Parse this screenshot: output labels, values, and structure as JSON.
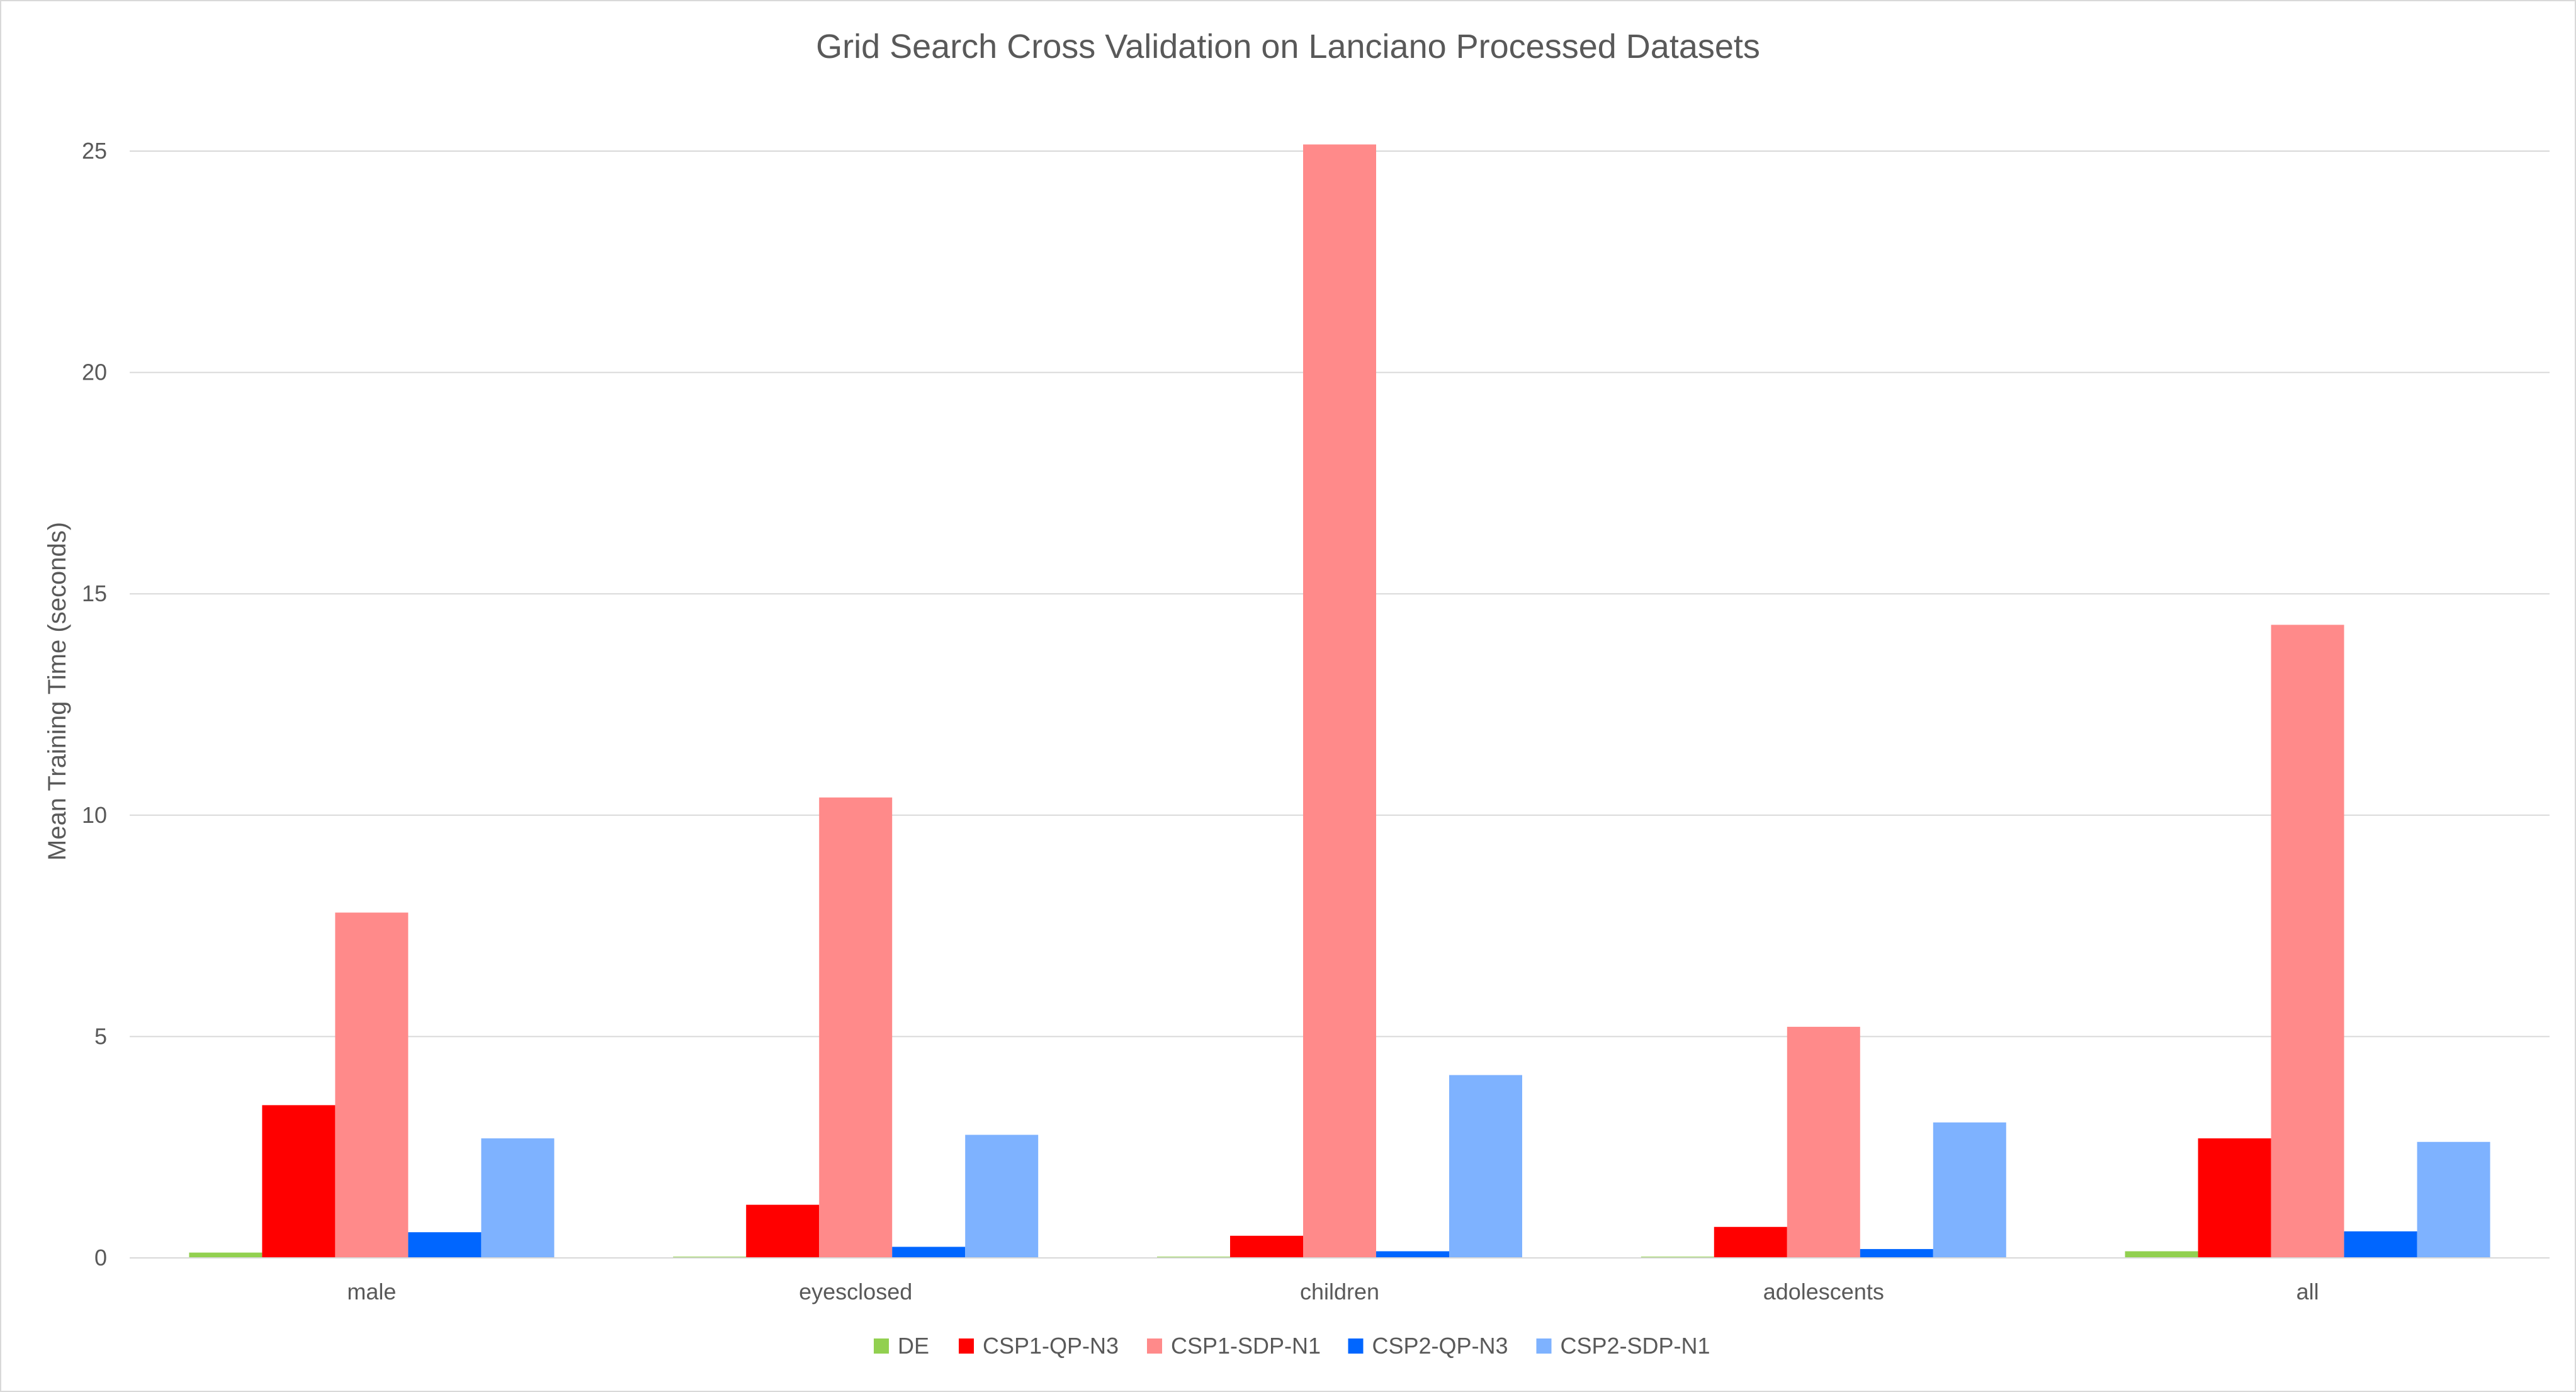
{
  "chart_data": {
    "type": "bar",
    "title": "Grid Search Cross Validation on Lanciano Processed Datasets",
    "xlabel": "",
    "ylabel": "Mean Training Time (seconds)",
    "ylim": [
      0,
      25
    ],
    "yticks": [
      0,
      5,
      10,
      15,
      20,
      25
    ],
    "grid": "horizontal",
    "legend_position": "bottom",
    "categories": [
      "male",
      "eyesclosed",
      "children",
      "adolescents",
      "all"
    ],
    "series": [
      {
        "name": "DE",
        "color": "#92d050",
        "values": [
          0.12,
          0.02,
          0.01,
          0.02,
          0.15
        ]
      },
      {
        "name": "CSP1-QP-N3",
        "color": "#ff0000",
        "values": [
          3.45,
          1.2,
          0.5,
          0.7,
          2.7
        ]
      },
      {
        "name": "CSP1-SDP-N1",
        "color": "#ff8a8a",
        "values": [
          7.8,
          10.4,
          25.15,
          5.22,
          14.3
        ]
      },
      {
        "name": "CSP2-QP-N3",
        "color": "#0066ff",
        "values": [
          0.58,
          0.25,
          0.15,
          0.2,
          0.6
        ]
      },
      {
        "name": "CSP2-SDP-N1",
        "color": "#7eb2ff",
        "values": [
          2.7,
          2.78,
          4.13,
          3.06,
          2.62
        ]
      }
    ]
  }
}
